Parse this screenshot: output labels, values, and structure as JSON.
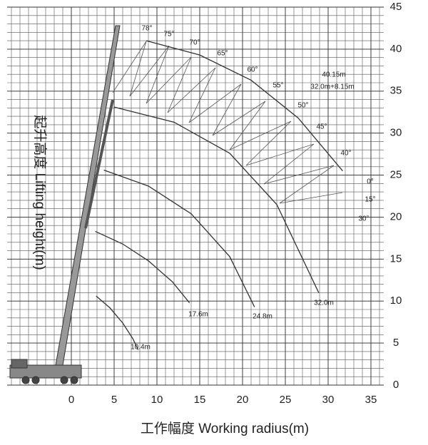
{
  "chart_data": {
    "type": "line",
    "x_label": "工作幅度 Working radius(m)",
    "y_label": "起升高度 Lifting height(m)",
    "xlim": [
      -7.5,
      36.5
    ],
    "ylim": [
      0,
      45
    ],
    "xticks": [
      0,
      5,
      10,
      15,
      20,
      25,
      30,
      35
    ],
    "yticks": [
      0,
      5,
      10,
      15,
      20,
      25,
      30,
      35,
      40,
      45
    ],
    "grid": true,
    "series": [
      {
        "name": "10.4m",
        "color": "#333333",
        "x": [
          2.9,
          4.5,
          6,
          7.2,
          7.8
        ],
        "values": [
          10.6,
          9.2,
          7.4,
          5.5,
          4.2
        ]
      },
      {
        "name": "17.6m",
        "color": "#333333",
        "x": [
          2.8,
          6,
          9,
          11.8,
          13.8
        ],
        "values": [
          18.3,
          16.8,
          14.8,
          12.3,
          9.8
        ]
      },
      {
        "name": "24.8m",
        "color": "#333333",
        "x": [
          3.8,
          9,
          14,
          18.5,
          21.4
        ],
        "values": [
          25.6,
          23.7,
          20.4,
          15.3,
          9.3
        ]
      },
      {
        "name": "32.0m",
        "color": "#333333",
        "x": [
          5,
          12,
          18.5,
          24,
          28.9
        ],
        "values": [
          33.1,
          31.3,
          27.6,
          21.5,
          11
        ]
      },
      {
        "name": "40.15m",
        "color": "#333333",
        "x": [
          8.75,
          15,
          21,
          26.5,
          31.7
        ],
        "values": [
          41,
          39.3,
          36.3,
          31.8,
          25.5
        ]
      }
    ],
    "annotations": [
      "32.0m+8.15m"
    ],
    "angle_labels": [
      "78°",
      "75°",
      "70°",
      "65°",
      "60°",
      "55°",
      "50°",
      "45°",
      "40°",
      "0°",
      "15°",
      "30°"
    ]
  }
}
